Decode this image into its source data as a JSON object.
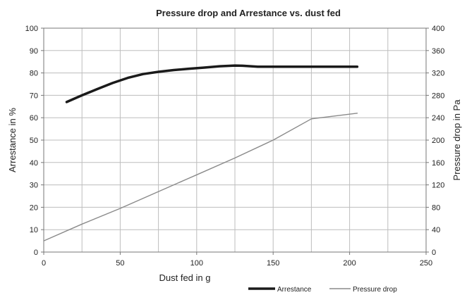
{
  "chart_data": {
    "type": "line",
    "title": "Pressure drop and Arrestance vs. dust fed",
    "xlabel": "Dust fed in g",
    "ylabel": "Arrestance in %",
    "y2label": "Pressure drop in Pa",
    "xlim": [
      0,
      250
    ],
    "ylim": [
      0,
      100
    ],
    "y2lim": [
      0,
      400
    ],
    "xticks": [
      "0",
      "50",
      "100",
      "150",
      "200",
      "250"
    ],
    "yticks": [
      "0",
      "10",
      "20",
      "30",
      "40",
      "50",
      "60",
      "70",
      "80",
      "90",
      "100"
    ],
    "y2ticks": [
      "0",
      "40",
      "80",
      "120",
      "160",
      "200",
      "240",
      "280",
      "320",
      "360",
      "400"
    ],
    "grid": true,
    "legend_position": "bottom-right",
    "series": [
      {
        "name": "Arrestance",
        "axis": "left",
        "color": "#1a1a1a",
        "x": [
          15,
          25,
          35,
          45,
          55,
          65,
          75,
          85,
          95,
          105,
          115,
          125,
          130,
          140,
          150,
          165,
          180,
          195,
          205
        ],
        "y": [
          67,
          70,
          72.8,
          75.5,
          77.8,
          79.5,
          80.5,
          81.3,
          81.9,
          82.4,
          83,
          83.3,
          83.2,
          82.8,
          82.8,
          82.8,
          82.8,
          82.8,
          82.8
        ]
      },
      {
        "name": "Pressure drop",
        "axis": "right",
        "color": "#8a8a8a",
        "x": [
          0,
          25,
          50,
          75,
          100,
          125,
          150,
          175,
          205
        ],
        "y": [
          20,
          50,
          78,
          108,
          138,
          168,
          200,
          238,
          248
        ]
      }
    ]
  }
}
